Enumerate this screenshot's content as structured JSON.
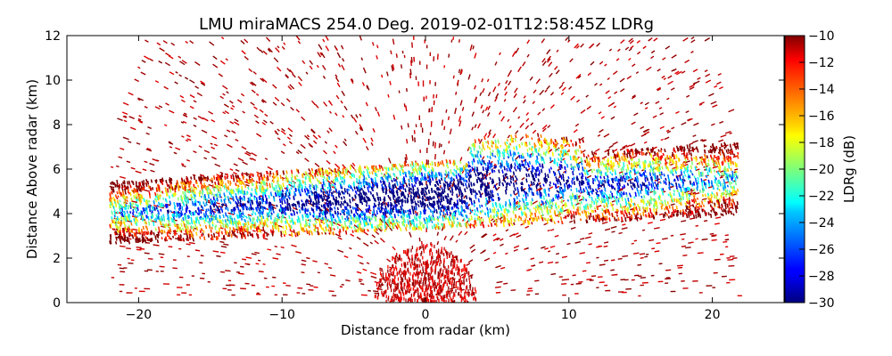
{
  "chart_data": {
    "type": "heatmap",
    "title": "LMU miraMACS 254.0 Deg. 2019-02-01T12:58:45Z  LDRg",
    "xlabel": "Distance from radar (km)",
    "ylabel": "Distance Above radar  (km)",
    "xlim": [
      -25,
      25
    ],
    "ylim": [
      0,
      12
    ],
    "x_ticks": [
      "−20",
      "−10",
      "0",
      "10",
      "20"
    ],
    "y_ticks": [
      "0",
      "2",
      "4",
      "6",
      "8",
      "10",
      "12"
    ],
    "colorbar": {
      "label": "LDRg (dB)",
      "range": [
        -30,
        -10
      ],
      "ticks": [
        "−10",
        "−12",
        "−14",
        "−16",
        "−18",
        "−20",
        "−22",
        "−24",
        "−26",
        "−28",
        "−30"
      ],
      "colormap": "jet"
    },
    "features": [
      {
        "region": "main cloud band",
        "x_range": [
          -22,
          22
        ],
        "height_range": [
          3,
          7.5
        ],
        "ldr_core": "-28 to -24",
        "ldr_edges": "-20 to -10"
      },
      {
        "region": "ground clutter",
        "x_range": [
          -3.5,
          3.5
        ],
        "height_range": [
          0,
          2.5
        ],
        "ldr": "-12 to -10"
      },
      {
        "region": "sparse speckle",
        "x_range": [
          -20,
          20
        ],
        "height_range": [
          0,
          12
        ],
        "ldr": "-10"
      }
    ]
  }
}
